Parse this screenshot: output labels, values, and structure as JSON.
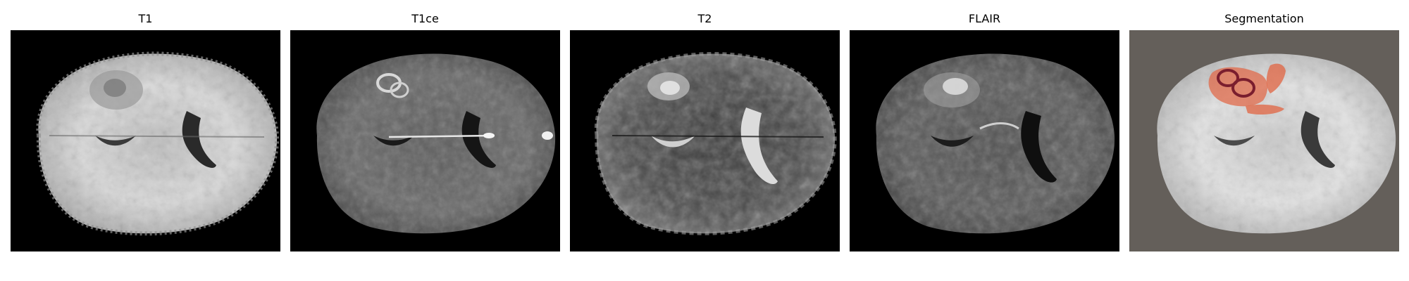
{
  "figure": {
    "panels": [
      {
        "title": "T1",
        "modality": "t1"
      },
      {
        "title": "T1ce",
        "modality": "t1ce"
      },
      {
        "title": "T2",
        "modality": "t2"
      },
      {
        "title": "FLAIR",
        "modality": "flair"
      },
      {
        "title": "Segmentation",
        "modality": "segmentation"
      }
    ]
  },
  "colors": {
    "segmentation_background": "#645f5a",
    "tumor_edema": "#e06a4a",
    "tumor_core_ring": "#7a1e2e"
  }
}
